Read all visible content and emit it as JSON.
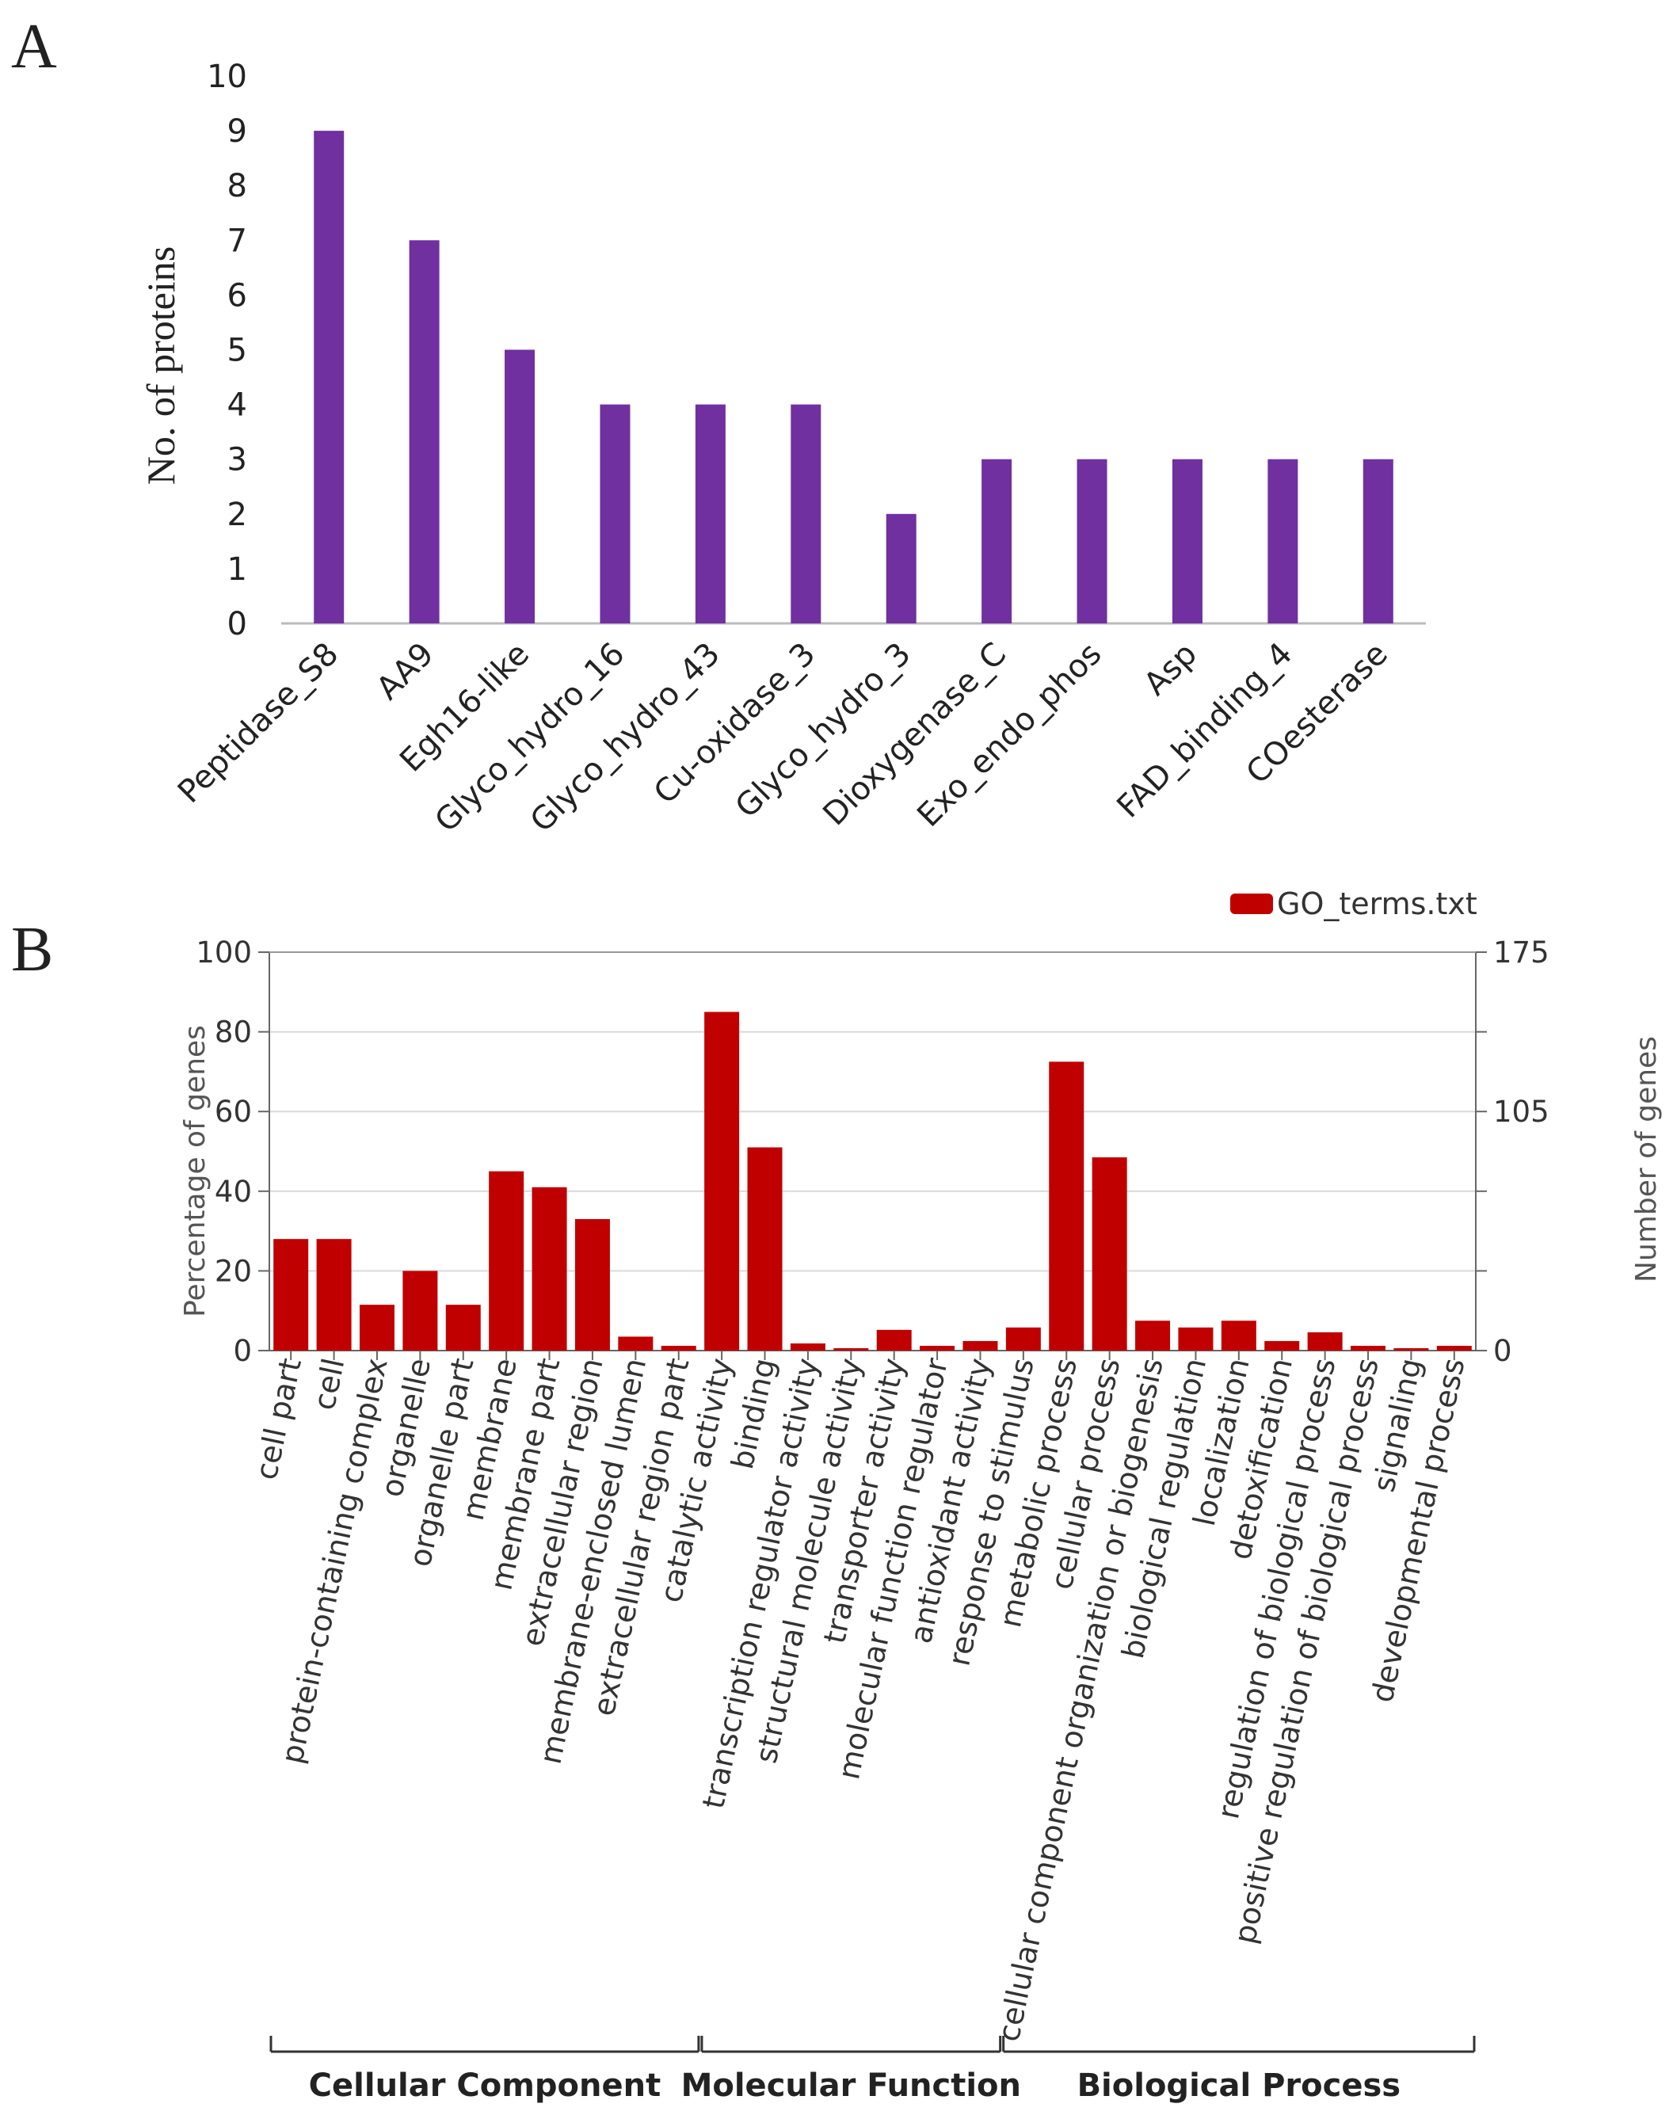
{
  "panel_labels": {
    "a": "A",
    "b": "B"
  },
  "colors": {
    "bar_a": "#7030A0",
    "bar_b": "#C00000",
    "axis": "#444444",
    "grid": "#d9d9d9",
    "text": "#222222",
    "text_b": "#333333"
  },
  "chart_data": [
    {
      "id": "A",
      "type": "bar",
      "title": "",
      "xlabel": "",
      "ylabel": "No. of proteins",
      "ylim": [
        0,
        10
      ],
      "yticks": [
        0,
        1,
        2,
        3,
        4,
        5,
        6,
        7,
        8,
        9,
        10
      ],
      "grid": false,
      "categories": [
        "Peptidase_S8",
        "AA9",
        "Egh16-like",
        "Glyco_hydro_16",
        "Glyco_hydro_43",
        "Cu-oxidase_3",
        "Glyco_hydro_3",
        "Dioxygenase_C",
        "Exo_endo_phos",
        "Asp",
        "FAD_binding_4",
        "COesterase"
      ],
      "values": [
        9,
        7,
        5,
        4,
        4,
        4,
        2,
        3,
        3,
        3,
        3,
        3
      ]
    },
    {
      "id": "B",
      "type": "bar",
      "title": "",
      "ylabel": "Percentage of genes",
      "ylabel_right": "Number of genes",
      "ylim": [
        0,
        100
      ],
      "yticks": [
        0,
        20,
        40,
        60,
        80,
        100
      ],
      "ylim_right": [
        0,
        175
      ],
      "yticks_right": [
        0,
        105,
        175
      ],
      "grid": true,
      "legend": {
        "label": "GO_terms.txt",
        "position": "top-right"
      },
      "categories": [
        "cell part",
        "cell",
        "protein-containing complex",
        "organelle",
        "organelle part",
        "membrane",
        "membrane part",
        "extracellular region",
        "membrane-enclosed lumen",
        "extracellular region part",
        "catalytic activity",
        "binding",
        "transcription regulator activity",
        "structural molecule activity",
        "transporter activity",
        "molecular function regulator",
        "antioxidant activity",
        "response to stimulus",
        "metabolic process",
        "cellular process",
        "cellular component organization or biogenesis",
        "biological regulation",
        "localization",
        "detoxification",
        "regulation of biological process",
        "positive regulation of biological process",
        "signaling",
        "developmental process"
      ],
      "values": [
        28,
        28,
        11.5,
        20,
        11.5,
        45,
        41,
        33,
        3.5,
        1.2,
        85,
        51,
        1.8,
        0.6,
        5.2,
        1.2,
        2.4,
        5.8,
        72.5,
        48.5,
        7.5,
        5.8,
        7.5,
        2.4,
        4.6,
        1.2,
        0.6,
        1.2
      ],
      "groups": [
        {
          "label": "Cellular Component",
          "count": 10
        },
        {
          "label": "Molecular Function",
          "count": 7
        },
        {
          "label": "Biological Process",
          "count": 11
        }
      ]
    }
  ]
}
